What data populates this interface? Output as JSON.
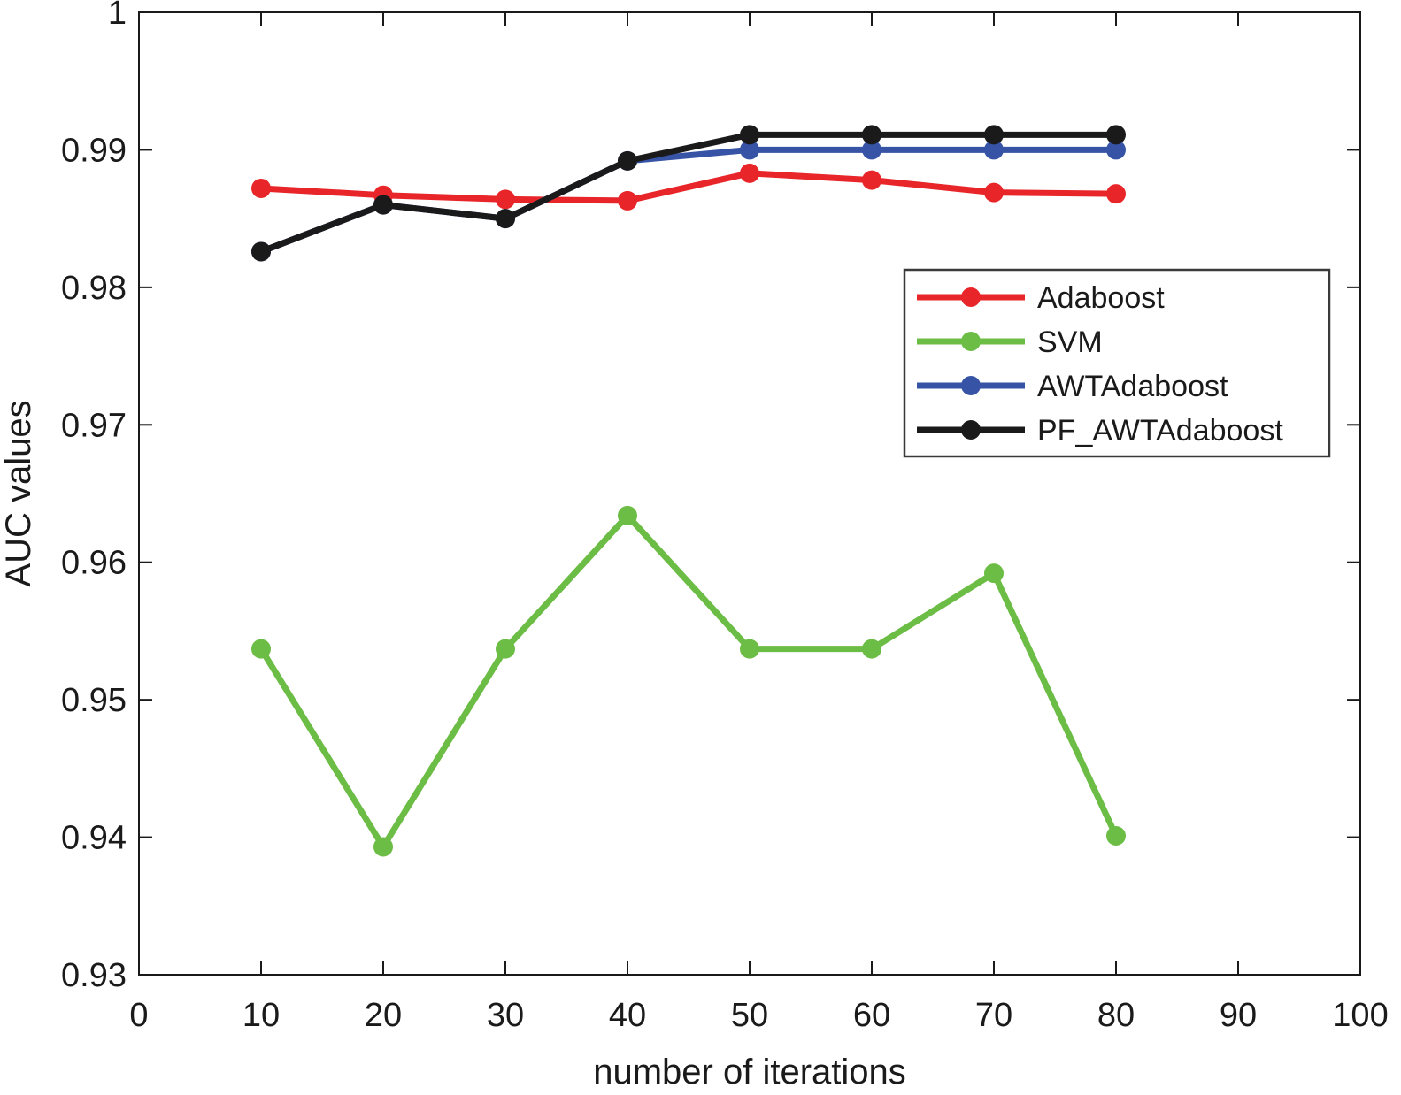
{
  "chart_data": {
    "type": "line",
    "title": "",
    "xlabel": "number of iterations",
    "ylabel": "AUC values",
    "xlim": [
      0,
      100
    ],
    "ylim": [
      0.93,
      1.0
    ],
    "xticks": [
      0,
      10,
      20,
      30,
      40,
      50,
      60,
      70,
      80,
      90,
      100
    ],
    "xtick_labels": [
      "0",
      "10",
      "20",
      "30",
      "40",
      "50",
      "60",
      "70",
      "80",
      "90",
      "100"
    ],
    "yticks": [
      0.93,
      0.94,
      0.95,
      0.96,
      0.97,
      0.98,
      0.99,
      1.0
    ],
    "ytick_labels": [
      "0.93",
      "0.94",
      "0.95",
      "0.96",
      "0.97",
      "0.98",
      "0.99",
      "1"
    ],
    "grid": false,
    "legend_position": "right",
    "x": [
      10,
      20,
      30,
      40,
      50,
      60,
      70,
      80
    ],
    "series": [
      {
        "name": "Adaboost",
        "color": "#e8262a",
        "values": [
          0.9872,
          0.9867,
          0.9864,
          0.9863,
          0.9883,
          0.9878,
          0.9869,
          0.9868
        ]
      },
      {
        "name": "SVM",
        "color": "#6cbd45",
        "values": [
          0.9537,
          0.9393,
          0.9537,
          0.9634,
          0.9537,
          0.9537,
          0.9592,
          0.9401
        ]
      },
      {
        "name": "AWTAdaboost",
        "color": "#3653a6",
        "values": [
          0.9826,
          0.986,
          0.985,
          0.9892,
          0.99,
          0.99,
          0.99,
          0.99
        ]
      },
      {
        "name": "PF_AWTAdaboost",
        "color": "#1a1a1a",
        "values": [
          0.9826,
          0.986,
          0.985,
          0.9892,
          0.9911,
          0.9911,
          0.9911,
          0.9911
        ]
      }
    ]
  }
}
